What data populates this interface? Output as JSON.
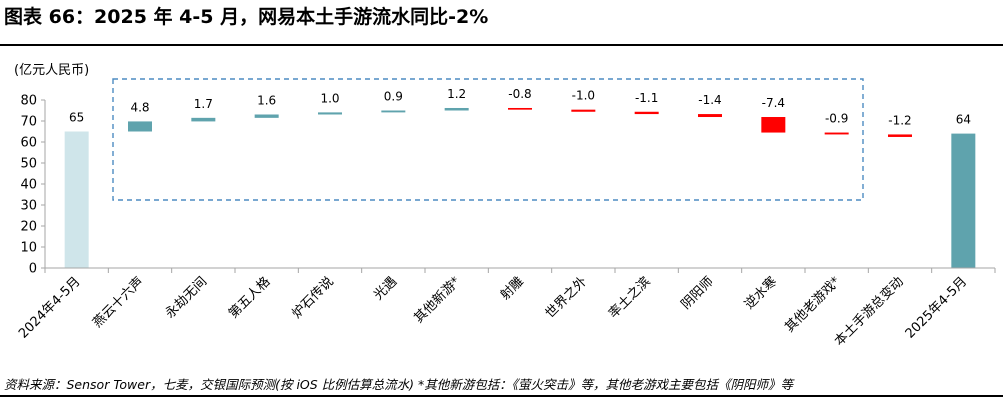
{
  "figure": {
    "title": "图表 66：2025 年 4-5 月，网易本土手游流水同比-2%",
    "unit": "(亿元人民币)",
    "source": "资料来源：Sensor Tower，七麦，交银国际预测(按 iOS 比例估算总流水)    *其他新游包括：《萤火突击》等，其他老游戏主要包括《阴阳师》等"
  },
  "colors": {
    "total_2024": "#cfe5ea",
    "increase": "#5fa3ad",
    "decrease": "#ff0000",
    "total_2025": "#5fa3ad",
    "bracket_border": "#4d8bc2",
    "axis": "#a6a6a6"
  },
  "chart_data": {
    "type": "bar",
    "subtype": "waterfall",
    "categories": [
      "2024年4-5月",
      "燕云十六声",
      "永劫无间",
      "第五人格",
      "炉石传说",
      "光遇",
      "其他新游*",
      "射雕",
      "世界之外",
      "率土之滨",
      "阴阳师",
      "逆水寒",
      "其他老游戏*",
      "本土手游总变动",
      "2025年4-5月"
    ],
    "values": [
      65,
      4.8,
      1.7,
      1.6,
      1.0,
      0.9,
      1.2,
      -0.8,
      -1.0,
      -1.1,
      -1.4,
      -7.4,
      -0.9,
      -1.2,
      64
    ],
    "value_labels": [
      "65",
      "4.8",
      "1.7",
      "1.6",
      "1.0",
      "0.9",
      "1.2",
      "-0.8",
      "-1.0",
      "-1.1",
      "-1.4",
      "-7.4",
      "-0.9",
      "-1.2",
      "64"
    ],
    "kinds": [
      "total",
      "delta",
      "delta",
      "delta",
      "delta",
      "delta",
      "delta",
      "delta",
      "delta",
      "delta",
      "delta",
      "delta",
      "delta",
      "delta",
      "total"
    ],
    "ylim": [
      0,
      80
    ],
    "yticks": [
      0,
      10,
      20,
      30,
      40,
      50,
      60,
      70,
      80
    ],
    "grid": false,
    "legend": "none",
    "annotation": "dashed box around the change bars"
  }
}
